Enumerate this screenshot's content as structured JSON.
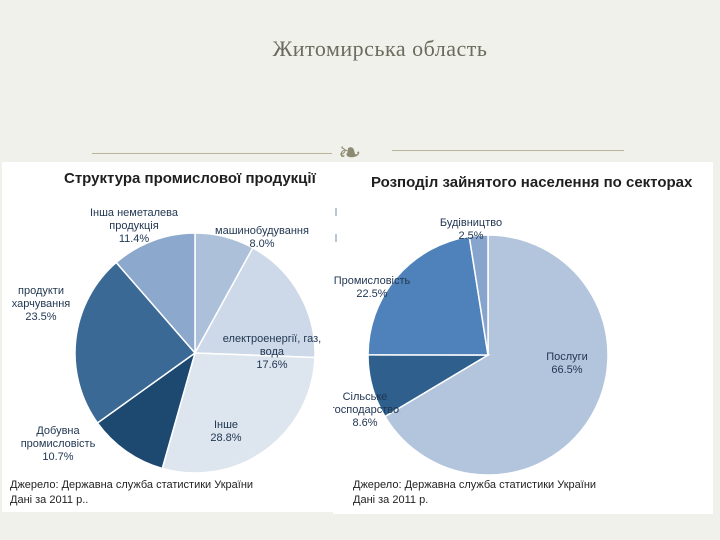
{
  "slide": {
    "title": "Житомирська область"
  },
  "chart_data": [
    {
      "type": "pie",
      "title": "Структура промислової продукції",
      "categories": [
        "машинобудування",
        "електроенергії, газ, вода",
        "Інше",
        "Добувна промисловість",
        "продукти харчування",
        "Інша неметалева продукція"
      ],
      "values": [
        8.0,
        17.6,
        28.8,
        10.7,
        23.5,
        11.4
      ],
      "labels": [
        {
          "name": "машинобудування",
          "pct": "8.0%"
        },
        {
          "name": "електроенергії, газ,\nвода",
          "pct": "17.6%"
        },
        {
          "name": "Інше",
          "pct": "28.8%"
        },
        {
          "name": "Добувна\nпромисловість",
          "pct": "10.7%"
        },
        {
          "name": "продукти\nхарчування",
          "pct": "23.5%"
        },
        {
          "name": "Інша неметалева\nпродукція",
          "pct": "11.4%"
        }
      ],
      "colors": [
        "#adc0da",
        "#cdd9e8",
        "#dde5ef",
        "#1d4971",
        "#3b6996",
        "#8ca8cc"
      ],
      "source": "Джерело: Державна служба статистики України\nДані за 2011 р.."
    },
    {
      "type": "pie",
      "title": "Розподіл зайнятого населення по секторах",
      "categories": [
        "Послуги",
        "Сільське господарство",
        "Промисловість",
        "Будівництво"
      ],
      "values": [
        66.5,
        8.6,
        22.5,
        2.5
      ],
      "labels": [
        {
          "name": "Послуги",
          "pct": "66.5%"
        },
        {
          "name": "Сільське\nгосподарство",
          "pct": "8.6%"
        },
        {
          "name": "Промисловість",
          "pct": "22.5%"
        },
        {
          "name": "Будівництво",
          "pct": "2.5%"
        }
      ],
      "colors": [
        "#b3c4dd",
        "#2e5f8d",
        "#4f82ba",
        "#86a4cc"
      ],
      "source": "Джерело: Державна служба статистики України\nДані за 2011 р."
    }
  ]
}
